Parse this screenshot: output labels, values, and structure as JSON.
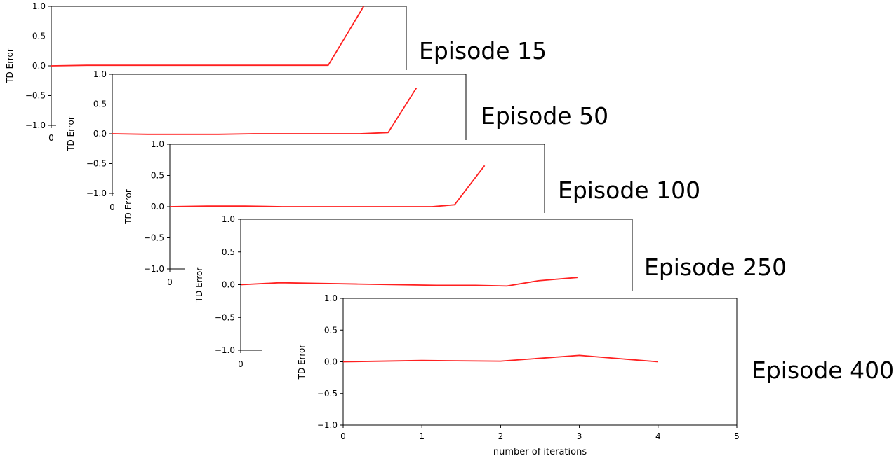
{
  "chart_data": [
    {
      "type": "line",
      "title": "Episode 15",
      "ylabel": "TD Error",
      "xlabel": "",
      "ylim": [
        -1.0,
        1.0
      ],
      "xlim": [
        0,
        5
      ],
      "yticks": [
        "1.0",
        "0.5",
        "0.0",
        "−0.5",
        "−1.0"
      ],
      "xticks": [
        "0"
      ],
      "series": [
        {
          "color": "#ff2020",
          "x": [
            0,
            0.5,
            1.0,
            1.5,
            2.0,
            2.5,
            3.0,
            3.5,
            3.9,
            4.4
          ],
          "y": [
            0.0,
            0.01,
            0.01,
            0.01,
            0.01,
            0.01,
            0.01,
            0.01,
            0.01,
            1.0
          ]
        }
      ]
    },
    {
      "type": "line",
      "title": "Episode 50",
      "ylabel": "TD Error",
      "xlabel": "",
      "ylim": [
        -1.0,
        1.0
      ],
      "xlim": [
        0,
        5
      ],
      "yticks": [
        "1.0",
        "0.5",
        "0.0",
        "−0.5",
        "−1.0"
      ],
      "xticks": [
        "0"
      ],
      "series": [
        {
          "color": "#ff2020",
          "x": [
            0,
            0.5,
            1.0,
            1.5,
            2.0,
            2.5,
            3.0,
            3.5,
            3.9,
            4.3
          ],
          "y": [
            0.0,
            -0.01,
            -0.01,
            -0.01,
            0.0,
            0.0,
            0.0,
            0.0,
            0.02,
            0.77
          ]
        }
      ]
    },
    {
      "type": "line",
      "title": "Episode 100",
      "ylabel": "TD Error",
      "xlabel": "",
      "ylim": [
        -1.0,
        1.0
      ],
      "xlim": [
        0,
        5
      ],
      "yticks": [
        "1.0",
        "0.5",
        "0.0",
        "−0.5",
        "−1.0"
      ],
      "xticks": [
        "0"
      ],
      "series": [
        {
          "color": "#ff2020",
          "x": [
            0,
            0.5,
            1.0,
            1.5,
            2.0,
            2.5,
            3.0,
            3.5,
            3.8,
            4.2
          ],
          "y": [
            0.0,
            0.01,
            0.01,
            0.0,
            0.0,
            0.0,
            0.0,
            0.0,
            0.03,
            0.66
          ]
        }
      ]
    },
    {
      "type": "line",
      "title": "Episode 250",
      "ylabel": "TD Error",
      "xlabel": "",
      "ylim": [
        -1.0,
        1.0
      ],
      "xlim": [
        0,
        5
      ],
      "yticks": [
        "1.0",
        "0.5",
        "0.0",
        "−0.5",
        "−1.0"
      ],
      "xticks": [
        "0"
      ],
      "series": [
        {
          "color": "#ff2020",
          "x": [
            0,
            0.5,
            1.0,
            1.5,
            2.0,
            2.5,
            3.0,
            3.4,
            3.8,
            4.3
          ],
          "y": [
            0.0,
            0.03,
            0.02,
            0.01,
            0.0,
            -0.01,
            -0.01,
            -0.02,
            0.06,
            0.11
          ]
        }
      ]
    },
    {
      "type": "line",
      "title": "Episode 400",
      "ylabel": "TD Error",
      "xlabel": "number of iterations",
      "ylim": [
        -1.0,
        1.0
      ],
      "xlim": [
        0,
        5
      ],
      "yticks": [
        "1.0",
        "0.5",
        "0.0",
        "−0.5",
        "−1.0"
      ],
      "xticks": [
        "0",
        "1",
        "2",
        "3",
        "4",
        "5"
      ],
      "series": [
        {
          "color": "#ff2020",
          "x": [
            0,
            1,
            2,
            3,
            4
          ],
          "y": [
            0.0,
            0.02,
            0.01,
            0.1,
            0.0
          ]
        }
      ]
    }
  ]
}
